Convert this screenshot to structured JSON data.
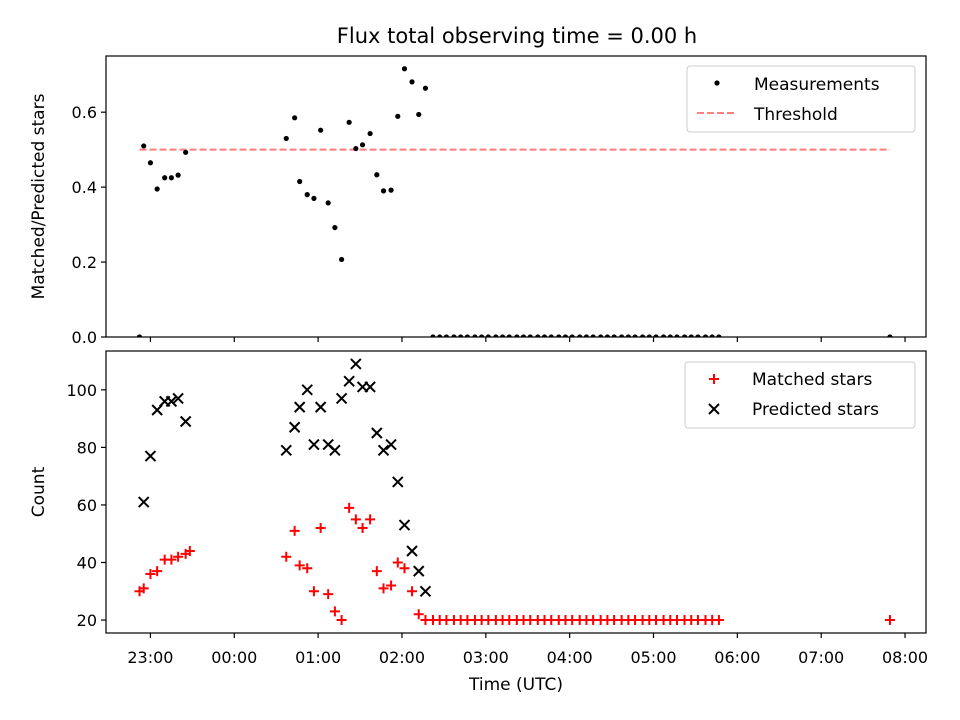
{
  "title": "Flux total observing time = 0.00 h",
  "colors": {
    "measurement": "#000000",
    "threshold": "#ff7f7f",
    "matched": "#ff0000",
    "predicted": "#000000"
  },
  "chart_data": [
    {
      "type": "scatter",
      "ylabel": "Matched/Predicted stars",
      "ylim": [
        0,
        0.75
      ],
      "xlim": [
        -1.53,
        8.25
      ],
      "yticks": [
        "0.0",
        "0.2",
        "0.4",
        "0.6"
      ],
      "legend": {
        "position": "top-right",
        "entries": [
          "Measurements",
          "Threshold"
        ]
      },
      "series": [
        {
          "name": "Measurements",
          "x": [
            -1.13,
            -1.08,
            -1.0,
            -0.92,
            -0.83,
            -0.75,
            -0.67,
            -0.58,
            0.62,
            0.72,
            0.78,
            0.87,
            0.95,
            1.03,
            1.12,
            1.2,
            1.28,
            1.37,
            1.45,
            1.53,
            1.62,
            1.7,
            1.78,
            1.87,
            1.95,
            2.03,
            2.12,
            2.2,
            2.28,
            2.37,
            2.45,
            2.53,
            2.62,
            2.7,
            2.78,
            2.87,
            2.95,
            3.03,
            3.12,
            3.2,
            3.28,
            3.37,
            3.45,
            3.53,
            3.62,
            3.7,
            3.78,
            3.87,
            3.95,
            4.03,
            4.12,
            4.2,
            4.28,
            4.37,
            4.45,
            4.53,
            4.62,
            4.7,
            4.78,
            4.87,
            4.95,
            5.03,
            5.12,
            5.2,
            5.28,
            5.37,
            5.45,
            5.53,
            5.62,
            5.7,
            5.78,
            7.82
          ],
          "y": [
            0.0,
            0.51,
            0.465,
            0.395,
            0.425,
            0.425,
            0.432,
            0.493,
            0.53,
            0.585,
            0.415,
            0.38,
            0.37,
            0.552,
            0.358,
            0.292,
            0.207,
            0.573,
            0.503,
            0.513,
            0.543,
            0.433,
            0.39,
            0.392,
            0.589,
            0.716,
            0.681,
            0.594,
            0.664,
            0,
            0,
            0,
            0,
            0,
            0,
            0,
            0,
            0,
            0,
            0,
            0,
            0,
            0,
            0,
            0,
            0,
            0,
            0,
            0,
            0,
            0,
            0,
            0,
            0,
            0,
            0,
            0,
            0,
            0,
            0,
            0,
            0,
            0,
            0,
            0,
            0,
            0,
            0,
            0,
            0,
            0,
            0.0
          ]
        },
        {
          "name": "Threshold",
          "x": [
            -1.13,
            7.82
          ],
          "y": [
            0.5,
            0.5
          ]
        }
      ]
    },
    {
      "type": "scatter",
      "xlabel": "Time (UTC)",
      "ylabel": "Count",
      "ylim": [
        15.5,
        113.5
      ],
      "xlim": [
        -1.53,
        8.25
      ],
      "yticks": [
        "20",
        "40",
        "60",
        "80",
        "100"
      ],
      "xticks": [
        {
          "v": -1,
          "label": "23:00"
        },
        {
          "v": 0,
          "label": "00:00"
        },
        {
          "v": 1,
          "label": "01:00"
        },
        {
          "v": 2,
          "label": "02:00"
        },
        {
          "v": 3,
          "label": "03:00"
        },
        {
          "v": 4,
          "label": "04:00"
        },
        {
          "v": 5,
          "label": "05:00"
        },
        {
          "v": 6,
          "label": "06:00"
        },
        {
          "v": 7,
          "label": "07:00"
        },
        {
          "v": 8,
          "label": "08:00"
        }
      ],
      "legend": {
        "position": "top-right",
        "entries": [
          "Matched stars",
          "Predicted stars"
        ]
      },
      "series": [
        {
          "name": "Matched stars",
          "x": [
            -1.13,
            -1.08,
            -1.0,
            -0.92,
            -0.83,
            -0.75,
            -0.67,
            -0.58,
            -0.53,
            0.62,
            0.72,
            0.78,
            0.87,
            0.95,
            1.03,
            1.12,
            1.2,
            1.28,
            1.37,
            1.45,
            1.53,
            1.62,
            1.7,
            1.78,
            1.87,
            1.95,
            2.03,
            2.12,
            2.2,
            2.28,
            2.37,
            2.45,
            2.53,
            2.62,
            2.7,
            2.78,
            2.87,
            2.95,
            3.03,
            3.12,
            3.2,
            3.28,
            3.37,
            3.45,
            3.53,
            3.62,
            3.7,
            3.78,
            3.87,
            3.95,
            4.03,
            4.12,
            4.2,
            4.28,
            4.37,
            4.45,
            4.53,
            4.62,
            4.7,
            4.78,
            4.87,
            4.95,
            5.03,
            5.12,
            5.2,
            5.28,
            5.37,
            5.45,
            5.53,
            5.62,
            5.7,
            5.78,
            7.82
          ],
          "y": [
            30,
            31,
            36,
            37,
            41,
            41,
            42,
            43,
            44,
            42,
            51,
            39,
            38,
            30,
            52,
            29,
            23,
            20,
            59,
            55,
            52,
            55,
            37,
            31,
            32,
            40,
            38,
            30,
            22,
            20,
            20,
            20,
            20,
            20,
            20,
            20,
            20,
            20,
            20,
            20,
            20,
            20,
            20,
            20,
            20,
            20,
            20,
            20,
            20,
            20,
            20,
            20,
            20,
            20,
            20,
            20,
            20,
            20,
            20,
            20,
            20,
            20,
            20,
            20,
            20,
            20,
            20,
            20,
            20,
            20,
            20,
            20,
            20
          ]
        },
        {
          "name": "Predicted stars",
          "x": [
            -1.08,
            -1.0,
            -0.92,
            -0.83,
            -0.75,
            -0.67,
            -0.58,
            0.62,
            0.72,
            0.78,
            0.87,
            0.95,
            1.03,
            1.12,
            1.2,
            1.28,
            1.37,
            1.45,
            1.53,
            1.62,
            1.7,
            1.78,
            1.87,
            1.95,
            2.03,
            2.12,
            2.2,
            2.28
          ],
          "y": [
            61,
            77,
            93,
            96,
            96,
            97,
            89,
            79,
            87,
            94,
            100,
            81,
            94,
            81,
            79,
            97,
            103,
            109,
            101,
            101,
            85,
            79,
            81,
            68,
            53,
            44,
            37,
            30
          ]
        }
      ]
    }
  ]
}
